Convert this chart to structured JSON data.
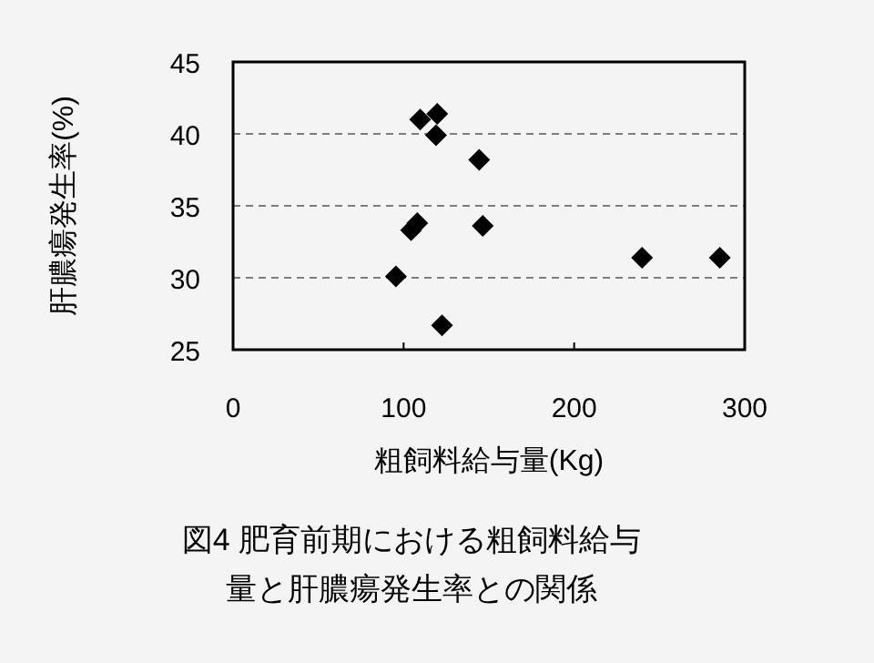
{
  "chart_data": {
    "type": "scatter",
    "title": "図4 肥育前期における粗飼料給与量と肝膿瘍発生率との関係",
    "xlabel": "粗飼料給与量(Kg)",
    "ylabel": "肝膿瘍発生率(%)",
    "x": [
      109.7,
      119.7,
      119,
      144.3,
      104.4,
      108,
      146.4,
      95.5,
      122.5,
      239.8,
      285.4
    ],
    "series": [
      {
        "color": "#000000",
        "values": [
          41.0,
          41.4,
          39.9,
          38.2,
          33.3,
          33.8,
          33.6,
          30.1,
          26.7,
          31.4,
          31.4
        ]
      }
    ],
    "xlim": [
      0,
      300
    ],
    "xticks": [
      0,
      100,
      200,
      300
    ],
    "ylim": [
      25,
      45
    ],
    "yticks": [
      25,
      30,
      35,
      40,
      45
    ],
    "grid": "y",
    "marker": "diamond"
  }
}
